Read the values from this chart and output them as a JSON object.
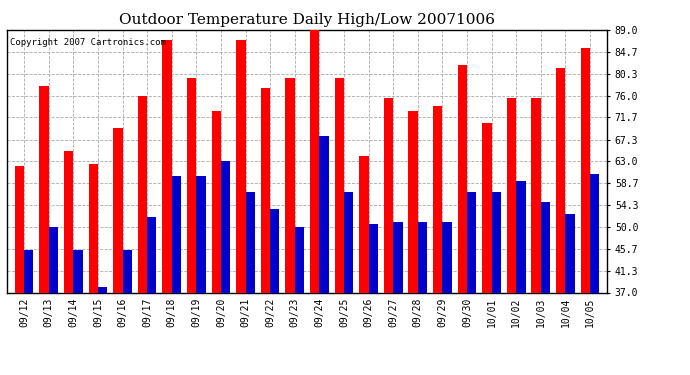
{
  "title": "Outdoor Temperature Daily High/Low 20071006",
  "copyright_text": "Copyright 2007 Cartronics.com",
  "dates": [
    "09/12",
    "09/13",
    "09/14",
    "09/15",
    "09/16",
    "09/17",
    "09/18",
    "09/19",
    "09/20",
    "09/21",
    "09/22",
    "09/23",
    "09/24",
    "09/25",
    "09/26",
    "09/27",
    "09/28",
    "09/29",
    "09/30",
    "10/01",
    "10/02",
    "10/03",
    "10/04",
    "10/05"
  ],
  "highs": [
    62.0,
    78.0,
    65.0,
    62.5,
    69.5,
    76.0,
    87.0,
    79.5,
    73.0,
    87.0,
    77.5,
    79.5,
    90.0,
    79.5,
    64.0,
    75.5,
    73.0,
    74.0,
    82.0,
    70.5,
    75.5,
    75.5,
    81.5,
    85.5
  ],
  "lows": [
    45.5,
    50.0,
    45.5,
    38.0,
    45.5,
    52.0,
    60.0,
    60.0,
    63.0,
    57.0,
    53.5,
    50.0,
    68.0,
    57.0,
    50.5,
    51.0,
    51.0,
    51.0,
    57.0,
    57.0,
    59.0,
    55.0,
    52.5,
    60.5
  ],
  "high_color": "#ff0000",
  "low_color": "#0000cc",
  "bg_color": "#ffffff",
  "grid_color": "#aaaaaa",
  "yticks": [
    37.0,
    41.3,
    45.7,
    50.0,
    54.3,
    58.7,
    63.0,
    67.3,
    71.7,
    76.0,
    80.3,
    84.7,
    89.0
  ],
  "ymin": 37.0,
  "ymax": 89.0,
  "bar_width": 0.38,
  "title_fontsize": 11,
  "tick_fontsize": 7,
  "copyright_fontsize": 6.5
}
